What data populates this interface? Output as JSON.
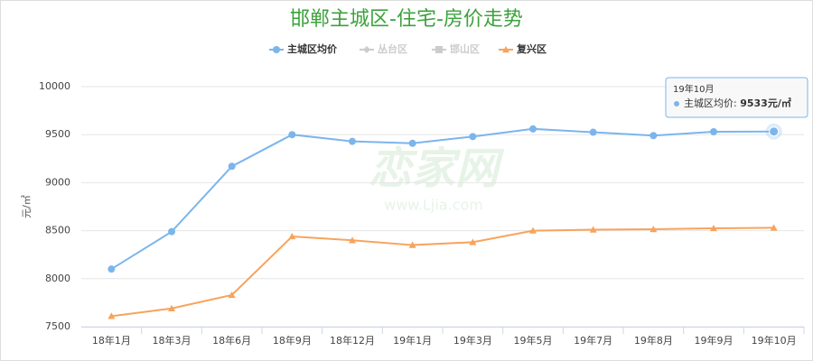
{
  "chart_data": {
    "type": "line",
    "title": "邯郸主城区-住宅-房价走势",
    "y_label": "元/㎡",
    "categories": [
      "18年1月",
      "18年3月",
      "18年6月",
      "18年9月",
      "18年12月",
      "19年1月",
      "19年3月",
      "19年5月",
      "19年7月",
      "19年8月",
      "19年9月",
      "19年10月"
    ],
    "series": [
      {
        "name": "主城区均价",
        "color": "#7cb5ec",
        "marker": "circle",
        "visible": true,
        "values": [
          8100,
          8490,
          9170,
          9500,
          9430,
          9410,
          9480,
          9560,
          9525,
          9490,
          9530,
          9533
        ]
      },
      {
        "name": "丛台区",
        "color": "#cccccc",
        "marker": "diamond",
        "visible": false,
        "values": [
          null,
          null,
          null,
          null,
          null,
          null,
          null,
          null,
          null,
          null,
          null,
          null
        ]
      },
      {
        "name": "邯山区",
        "color": "#cccccc",
        "marker": "square",
        "visible": false,
        "values": [
          null,
          null,
          null,
          null,
          null,
          null,
          null,
          null,
          null,
          null,
          null,
          null
        ]
      },
      {
        "name": "复兴区",
        "color": "#f7a35c",
        "marker": "triangle",
        "visible": true,
        "values": [
          7610,
          7690,
          7830,
          8440,
          8400,
          8350,
          8380,
          8500,
          8510,
          8515,
          8525,
          8530
        ]
      }
    ],
    "ylim": [
      7500,
      10000
    ],
    "yticks": [
      7500,
      8000,
      8500,
      9000,
      9500,
      10000
    ],
    "grid": true,
    "legend": "top",
    "tooltip": {
      "series": 0,
      "index": 11
    },
    "watermark": [
      "恋家网",
      "www.Ljia.com"
    ]
  }
}
